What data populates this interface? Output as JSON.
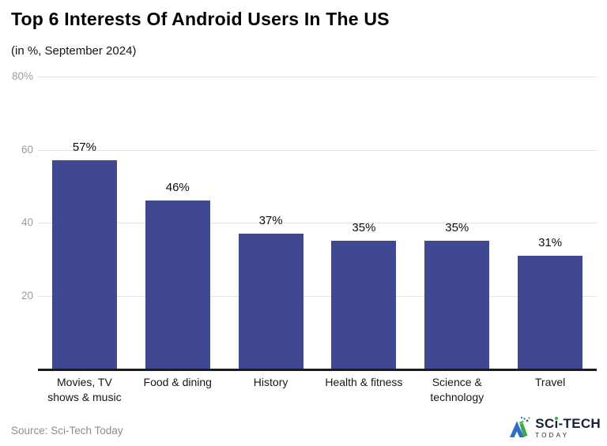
{
  "header": {
    "title": "Top 6 Interests Of Android Users In The US",
    "subtitle": "(in %, September 2024)"
  },
  "chart_data": {
    "type": "bar",
    "title": "Top 6 Interests Of Android Users In The US",
    "subtitle": "(in %, September 2024)",
    "unit": "%",
    "categories": [
      "Movies, TV shows & music",
      "Food & dining",
      "History",
      "Health & fitness",
      "Science & technology",
      "Travel"
    ],
    "categories_display": [
      [
        "Movies, TV",
        "shows & music"
      ],
      [
        "Food & dining"
      ],
      [
        "History"
      ],
      [
        "Health & fitness"
      ],
      [
        "Science &",
        "technology"
      ],
      [
        "Travel"
      ]
    ],
    "values": [
      57,
      46,
      37,
      35,
      35,
      31
    ],
    "value_labels": [
      "57%",
      "46%",
      "37%",
      "35%",
      "35%",
      "31%"
    ],
    "xlabel": "",
    "ylabel": "",
    "ylim": [
      0,
      80
    ],
    "yticks": [
      {
        "value": 80,
        "label": "80%"
      },
      {
        "value": 60,
        "label": "60"
      },
      {
        "value": 40,
        "label": "40"
      },
      {
        "value": 20,
        "label": "20"
      }
    ],
    "grid": true,
    "legend": "none",
    "data_labels": true
  },
  "colors": {
    "bar": "#3f4890",
    "grid": "#e4e4e4",
    "axis": "#1c1c1c",
    "tick_text": "#9c9c9c",
    "value_text": "#0d0d0d",
    "category_text": "#161616",
    "source_text": "#8e8e8e",
    "brand_navy": "#152338",
    "brand_green": "#3fa94f",
    "brand_blue": "#2f6ec5"
  },
  "footer": {
    "source": "Source: Sci-Tech Today",
    "brand": {
      "name": "SCI-TECH TODAY",
      "name_pre": "SC",
      "name_i": "i",
      "name_post": "-TECH",
      "sub": "TODAY"
    }
  }
}
